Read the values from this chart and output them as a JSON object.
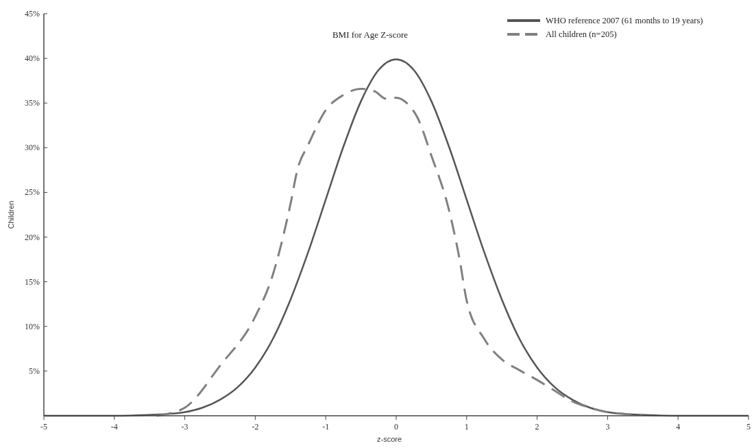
{
  "chart_data": {
    "type": "line",
    "title": "BMI for Age Z-score",
    "xlabel": "z-score",
    "ylabel": "Children",
    "xlim": [
      -5,
      5
    ],
    "xticks": [
      -5,
      -4,
      -3,
      -2,
      -1,
      0,
      1,
      2,
      3,
      4,
      5
    ],
    "ylim": [
      0,
      45
    ],
    "yticks": [
      {
        "value": 5,
        "label": "5%"
      },
      {
        "value": 10,
        "label": "10%"
      },
      {
        "value": 15,
        "label": "15%"
      },
      {
        "value": 20,
        "label": "20%"
      },
      {
        "value": 25,
        "label": "25%"
      },
      {
        "value": 30,
        "label": "30%"
      },
      {
        "value": 35,
        "label": "35%"
      },
      {
        "value": 40,
        "label": "40%"
      },
      {
        "value": 45,
        "label": "45%"
      }
    ],
    "legend": "top right",
    "grid": false,
    "series": [
      {
        "name": "WHO reference 2007 (61 months to 19 years)",
        "color": "#555555",
        "line_style": "solid",
        "x": [
          -5,
          -4,
          -3.5,
          -3.25,
          -3,
          -2.75,
          -2.5,
          -2.25,
          -2,
          -1.75,
          -1.5,
          -1.25,
          -1,
          -0.75,
          -0.5,
          -0.25,
          0,
          0.25,
          0.5,
          0.75,
          1,
          1.25,
          1.5,
          1.75,
          2,
          2.25,
          2.5,
          2.75,
          3,
          3.25,
          3.5,
          4,
          5
        ],
        "values": [
          0,
          0,
          0.1,
          0.2,
          0.4,
          0.9,
          1.8,
          3.2,
          5.4,
          8.6,
          13,
          18.3,
          24.2,
          30.1,
          35.2,
          38.7,
          39.9,
          38.7,
          35.2,
          30.1,
          24.2,
          18.3,
          13,
          8.6,
          5.4,
          3.2,
          1.8,
          0.9,
          0.4,
          0.2,
          0.1,
          0,
          0
        ]
      },
      {
        "name": "All children (n=205)",
        "color": "#808080",
        "line_style": "dashed",
        "x": [
          -3.4,
          -3.2,
          -3,
          -2.5,
          -2,
          -1.75,
          -1.6,
          -1.5,
          -1.4,
          -1.25,
          -1,
          -0.75,
          -0.5,
          -0.3,
          -0.15,
          0,
          0.15,
          0.3,
          0.5,
          0.75,
          0.9,
          1,
          1.25,
          1.5,
          1.75,
          2,
          2.25,
          2.5,
          2.75,
          3,
          3.25,
          3.5
        ],
        "values": [
          0,
          0.3,
          0.9,
          5.6,
          11.1,
          15.8,
          20.2,
          23.7,
          27.6,
          30.3,
          34.2,
          35.9,
          36.6,
          36.3,
          35.5,
          35.6,
          35,
          33.4,
          29.1,
          23,
          17.5,
          12.9,
          8.6,
          6.3,
          5.1,
          4,
          2.8,
          1.6,
          0.9,
          0.4,
          0.2,
          0.1
        ]
      }
    ]
  }
}
